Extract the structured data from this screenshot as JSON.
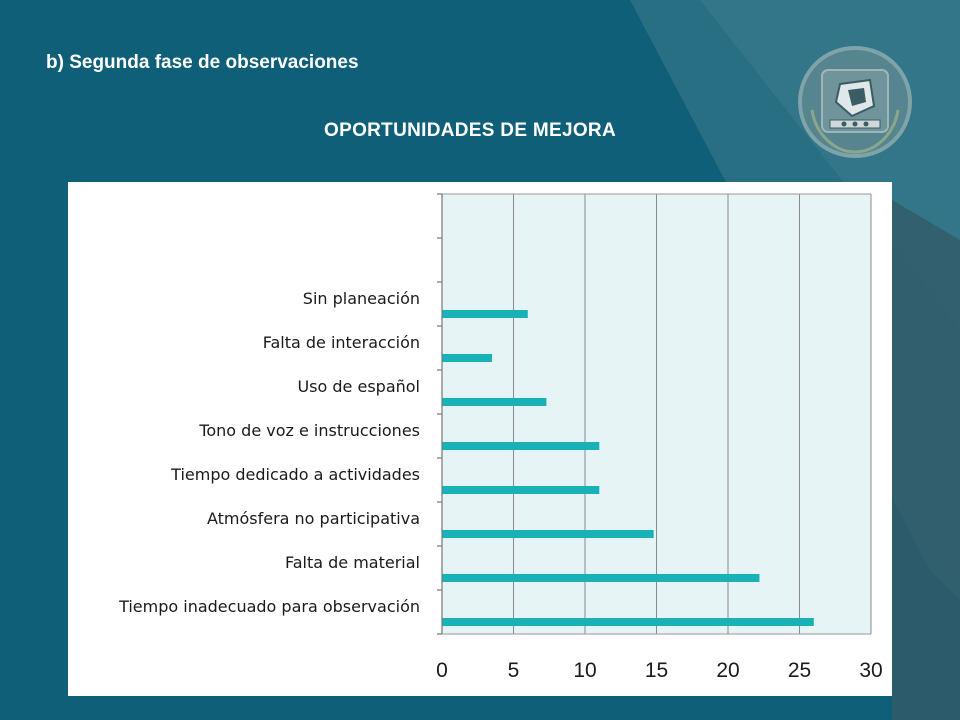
{
  "slide": {
    "title": "b) Segunda fase de observaciones"
  },
  "colors": {
    "background": "#0f5f78",
    "bar": "#19b1b8",
    "plot_area": "#e6f4f6",
    "text": "#ffffff"
  },
  "logo": {
    "icon": "university-seal-icon"
  },
  "chart_data": {
    "type": "bar",
    "orientation": "horizontal",
    "title": "OPORTUNIDADES DE MEJORA",
    "categories": [
      "Sin planeación",
      "Falta de interacción",
      "Uso de español",
      "Tono de voz e instrucciones",
      "Tiempo dedicado a actividades",
      "Atmósfera no participativa",
      "Falta de material",
      "Tiempo inadecuado para observación"
    ],
    "values": [
      6,
      3.5,
      7.3,
      11,
      11,
      14.8,
      22.2,
      26
    ],
    "empty_slots_above": 2,
    "xlim": [
      0,
      30
    ],
    "xticks": [
      "0",
      "5",
      "10",
      "15",
      "20",
      "25",
      "30"
    ],
    "xlabel": "",
    "ylabel": "",
    "grid": "vertical",
    "legend": "none"
  }
}
